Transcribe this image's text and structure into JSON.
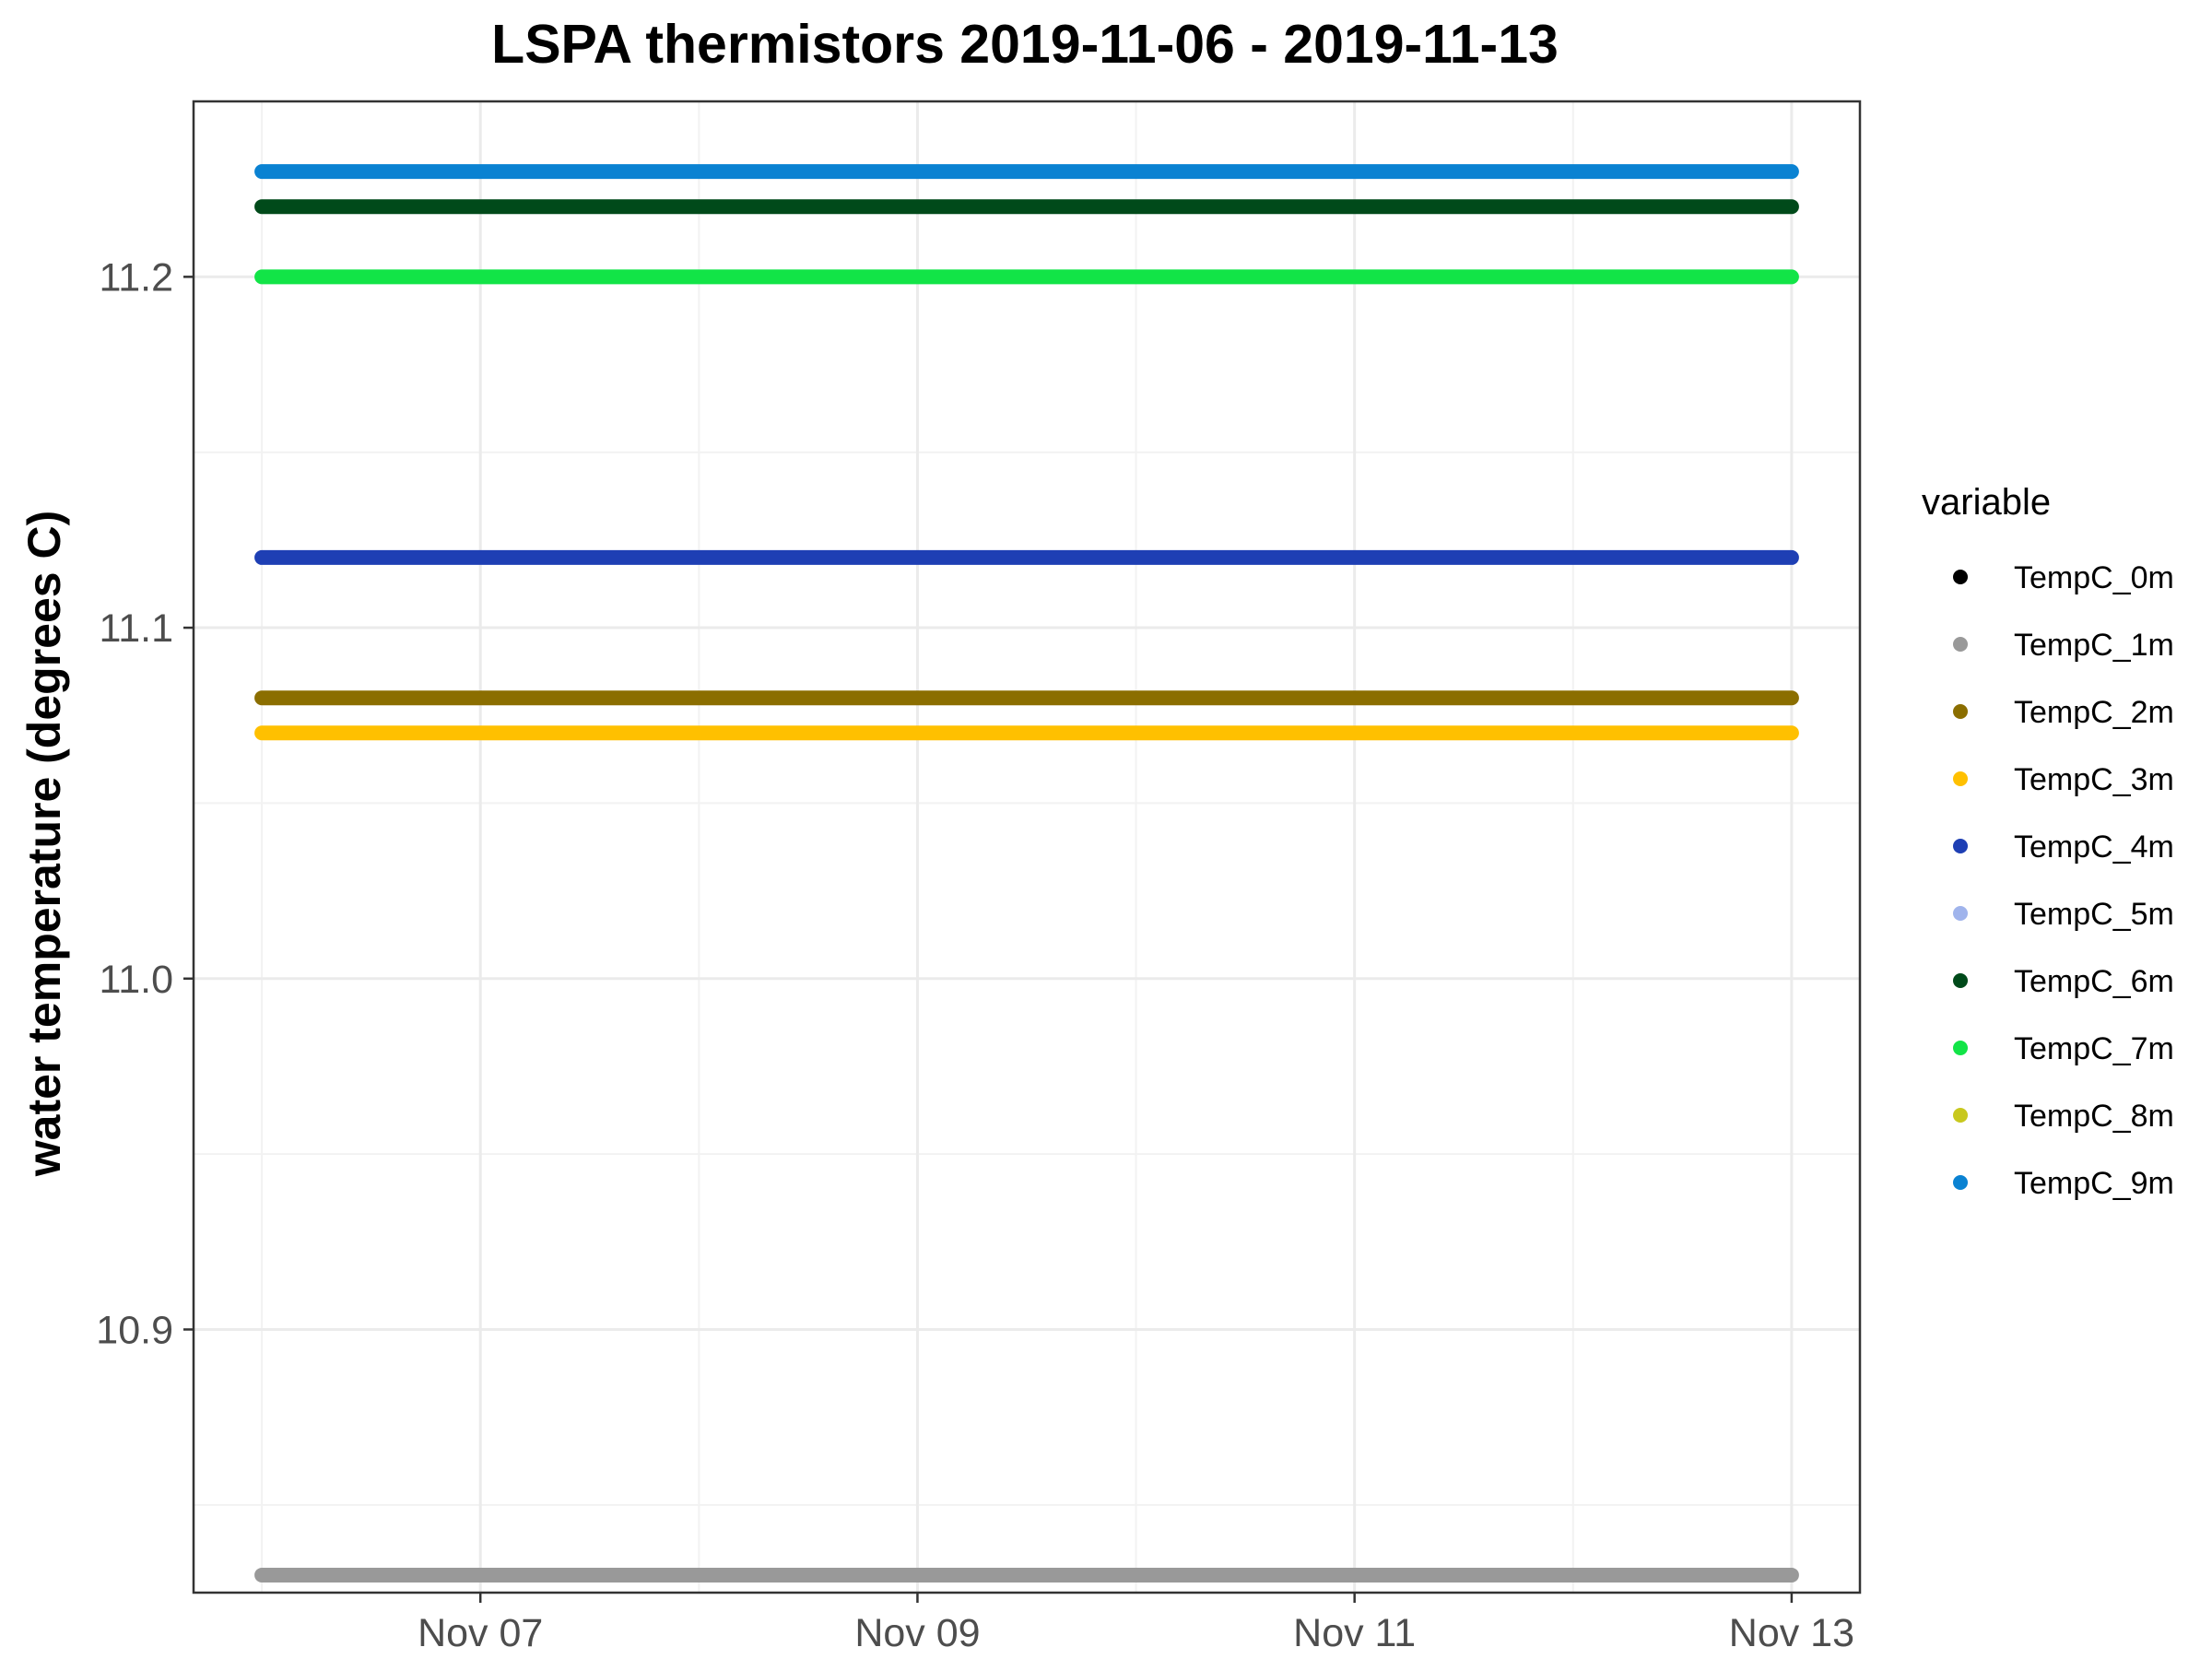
{
  "chart_data": {
    "type": "scatter",
    "title": "LSPA thermistors 2019-11-06 - 2019-11-13",
    "xlabel": "",
    "ylabel": "water temperature (degrees C)",
    "x_range": [
      "2019-11-06",
      "2019-11-13"
    ],
    "xlim": [
      "2019-11-05 16:30",
      "2019-11-13 07:30"
    ],
    "ylim": [
      10.825,
      11.25
    ],
    "x_ticks": [
      {
        "date": "2019-11-07",
        "label": "Nov 07"
      },
      {
        "date": "2019-11-09",
        "label": "Nov 09"
      },
      {
        "date": "2019-11-11",
        "label": "Nov 11"
      },
      {
        "date": "2019-11-13",
        "label": "Nov 13"
      }
    ],
    "x_minor_ticks": [
      "2019-11-06",
      "2019-11-08",
      "2019-11-10",
      "2019-11-12"
    ],
    "y_ticks": [
      10.9,
      11.0,
      11.1,
      11.2
    ],
    "y_tick_labels": [
      "10.9",
      "11.0",
      "11.1",
      "11.2"
    ],
    "y_minor_ticks": [
      10.85,
      10.95,
      11.05,
      11.15
    ],
    "grid": true,
    "legend_title": "variable",
    "legend_position": "right",
    "series": [
      {
        "name": "TempC_0m",
        "color": "#000000",
        "values": []
      },
      {
        "name": "TempC_1m",
        "color": "#999999",
        "values": [
          10.83,
          10.83
        ]
      },
      {
        "name": "TempC_2m",
        "color": "#8B6E00",
        "values": [
          11.08,
          11.08
        ]
      },
      {
        "name": "TempC_3m",
        "color": "#FFC000",
        "values": [
          11.07,
          11.07
        ]
      },
      {
        "name": "TempC_4m",
        "color": "#1E3FB4",
        "values": [
          11.12,
          11.12
        ]
      },
      {
        "name": "TempC_5m",
        "color": "#A0B4EC",
        "values": []
      },
      {
        "name": "TempC_6m",
        "color": "#004A1A",
        "values": [
          11.22,
          11.22
        ]
      },
      {
        "name": "TempC_7m",
        "color": "#12E447",
        "values": [
          11.2,
          11.2
        ]
      },
      {
        "name": "TempC_8m",
        "color": "#C8C81E",
        "values": []
      },
      {
        "name": "TempC_9m",
        "color": "#0A82D2",
        "values": [
          11.23,
          11.23
        ]
      }
    ]
  }
}
